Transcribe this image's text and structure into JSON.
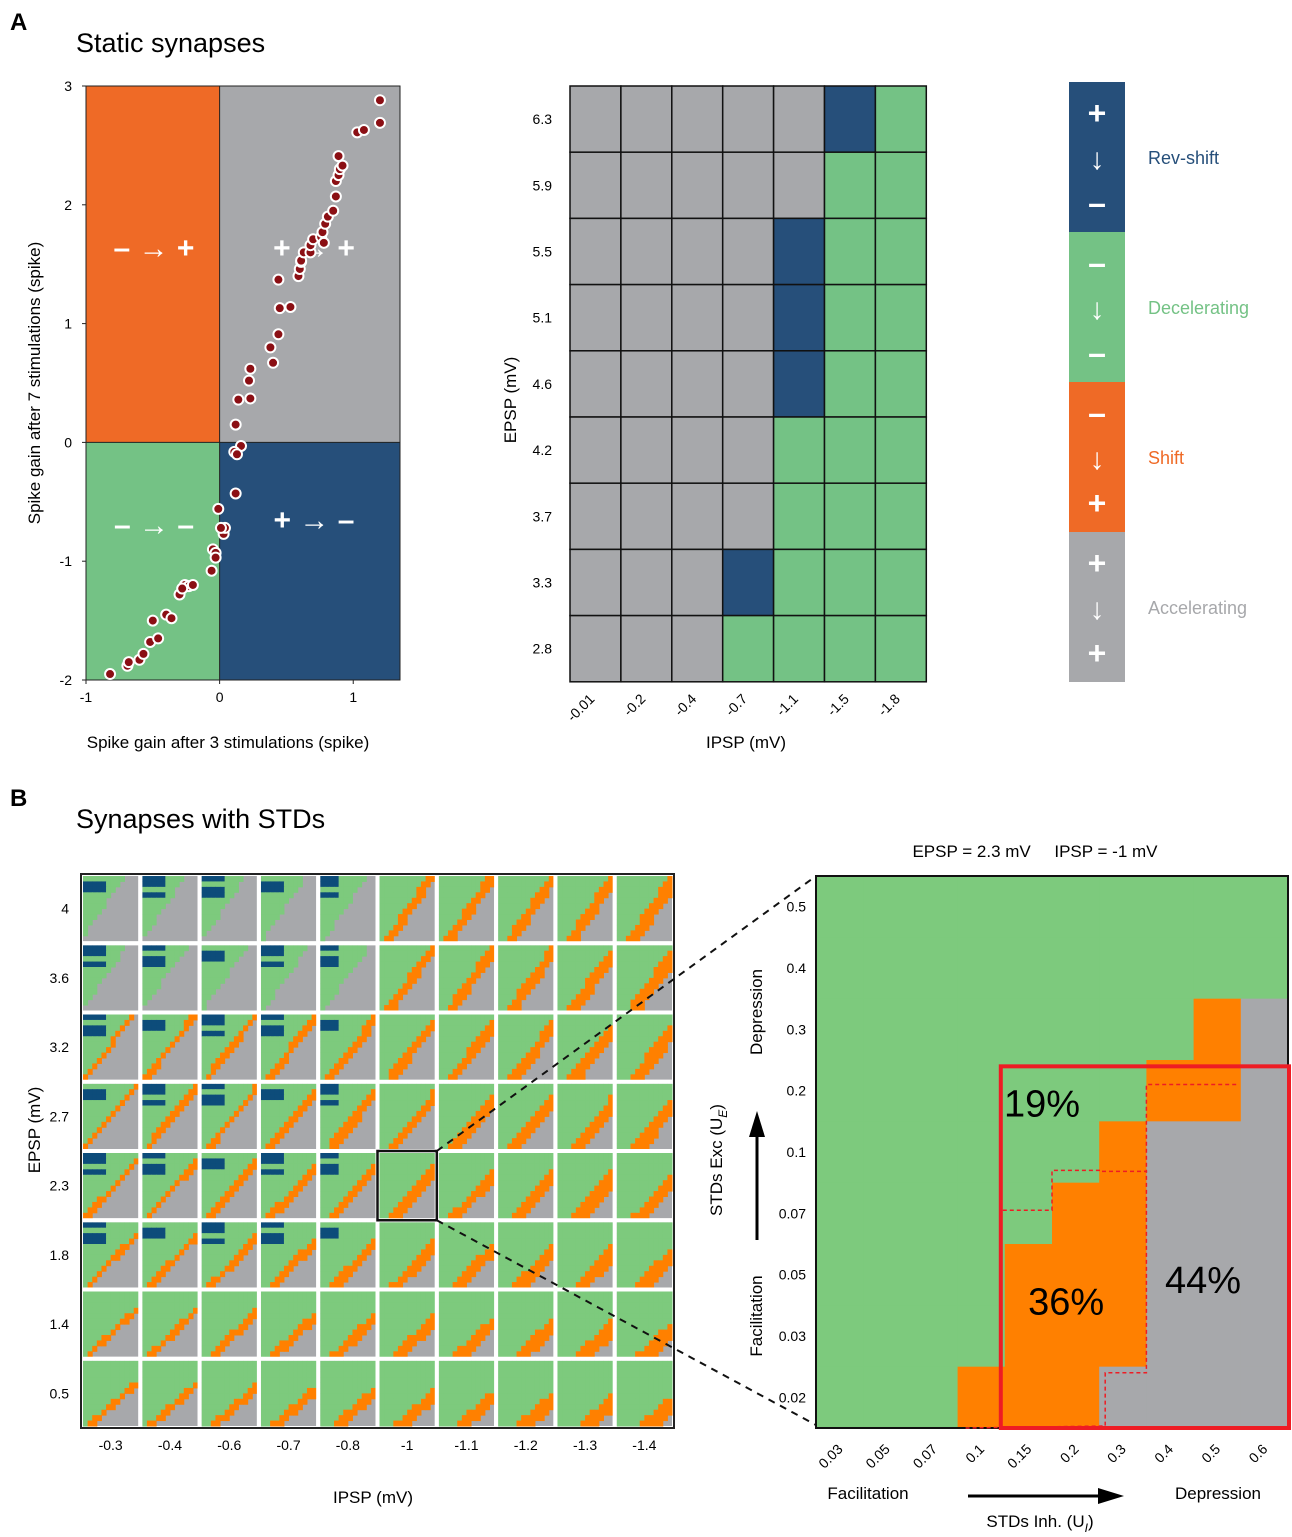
{
  "colors": {
    "orange_region": "#ef6a26",
    "gray": "#a7a8ab",
    "green": "#74c285",
    "blue": "#264f7a",
    "dot_fill": "#8b0f14",
    "highlight_red": "#ee1c24",
    "orange_std": "#ff8000",
    "green_std": "#7dca7d",
    "blue_std": "#0d4c7a"
  },
  "panel_a": {
    "letter": "A",
    "title": "Static synapses",
    "scatter": {
      "quadrant_labels": [
        {
          "from": "–",
          "to": "+",
          "color": "orange_region"
        },
        {
          "from": "+",
          "to": "+",
          "color": "gray"
        },
        {
          "from": "–",
          "to": "–",
          "color": "green"
        },
        {
          "from": "+",
          "to": "–",
          "color": "blue"
        }
      ],
      "arrow": "→"
    },
    "heatmap": {
      "xlabel": "IPSP (mV)",
      "ylabel": "EPSP (mV)"
    },
    "legend": [
      {
        "label": "Rev-shift",
        "color": "blue",
        "top": "+",
        "bottom": "–"
      },
      {
        "label": "Decelerating",
        "color": "green",
        "top": "–",
        "bottom": "–"
      },
      {
        "label": "Shift",
        "color": "orange_region",
        "top": "–",
        "bottom": "+"
      },
      {
        "label": "Accelerating",
        "color": "gray",
        "top": "+",
        "bottom": "+"
      }
    ],
    "legend_arrow": "↓"
  },
  "panel_b": {
    "letter": "B",
    "title": "Synapses with STDs",
    "grid": {
      "xlabel": "IPSP (mV)",
      "ylabel": "EPSP (mV)",
      "x_ticks": [
        "-0.3",
        "-0.4",
        "-0.6",
        "-0.7",
        "-0.8",
        "-1",
        "-1.1",
        "-1.2",
        "-1.3",
        "-1.4"
      ],
      "y_ticks": [
        "4",
        "3.6",
        "3.2",
        "2.7",
        "2.3",
        "1.8",
        "1.4",
        "0.5"
      ],
      "highlighted_cell": {
        "epsp": "2.3",
        "ipsp": "-1"
      }
    },
    "zoom": {
      "header": "EPSP = 2.3 mV     IPSP = -1 mV",
      "x_ticks": [
        "0.03",
        "0.05",
        "0.07",
        "0.1",
        "0.15",
        "0.2",
        "0.3",
        "0.4",
        "0.5",
        "0.6"
      ],
      "y_ticks": [
        "0.5",
        "0.4",
        "0.3",
        "0.2",
        "0.1",
        "0.07",
        "0.05",
        "0.03",
        "0.02"
      ],
      "x_axis_left": "Facilitation",
      "x_axis_right": "Depression",
      "x_axis_title": "STDs Inh. (U",
      "x_axis_sub": "I",
      "x_axis_close": ")",
      "y_axis_bottom": "Facilitation",
      "y_axis_top": "Depression",
      "y_axis_title": "STDs Exc (U",
      "y_axis_sub": "E",
      "y_axis_close": ")",
      "percent_labels": [
        "19%",
        "36%",
        "44%"
      ]
    }
  },
  "chart_data": [
    {
      "type": "scatter",
      "xlabel": "Spike gain after 3 stimulations (spike)",
      "ylabel": "Spike gain after 7 stimulations (spike)",
      "xlim": [
        -1,
        1.35
      ],
      "ylim": [
        -2,
        3
      ],
      "x_ticks": [
        "-1",
        "0",
        "1"
      ],
      "y_ticks": [
        "3",
        "2",
        "1",
        "0",
        "-1",
        "-2"
      ],
      "grid": false,
      "points": [
        [
          -0.82,
          -1.95
        ],
        [
          -0.69,
          -1.88
        ],
        [
          -0.68,
          -1.85
        ],
        [
          -0.6,
          -1.83
        ],
        [
          -0.57,
          -1.78
        ],
        [
          -0.52,
          -1.68
        ],
        [
          -0.46,
          -1.65
        ],
        [
          -0.5,
          -1.5
        ],
        [
          -0.4,
          -1.45
        ],
        [
          -0.36,
          -1.48
        ],
        [
          -0.3,
          -1.28
        ],
        [
          -0.26,
          -1.2
        ],
        [
          -0.23,
          -1.21
        ],
        [
          -0.2,
          -1.2
        ],
        [
          -0.28,
          -1.23
        ],
        [
          -0.06,
          -1.08
        ],
        [
          -0.05,
          -0.9
        ],
        [
          -0.03,
          -0.93
        ],
        [
          -0.03,
          -0.97
        ],
        [
          0.03,
          -0.77
        ],
        [
          0.04,
          -0.72
        ],
        [
          0.01,
          -0.72
        ],
        [
          -0.01,
          -0.56
        ],
        [
          0.12,
          -0.43
        ],
        [
          0.16,
          -0.03
        ],
        [
          0.11,
          -0.08
        ],
        [
          0.13,
          -0.1
        ],
        [
          0.12,
          0.15
        ],
        [
          0.14,
          0.36
        ],
        [
          0.23,
          0.37
        ],
        [
          0.22,
          0.52
        ],
        [
          0.23,
          0.62
        ],
        [
          0.4,
          0.67
        ],
        [
          0.38,
          0.8
        ],
        [
          0.44,
          0.91
        ],
        [
          0.45,
          1.13
        ],
        [
          0.53,
          1.14
        ],
        [
          0.44,
          1.37
        ],
        [
          0.59,
          1.4
        ],
        [
          0.6,
          1.46
        ],
        [
          0.61,
          1.52
        ],
        [
          0.61,
          1.53
        ],
        [
          0.63,
          1.6
        ],
        [
          0.68,
          1.6
        ],
        [
          0.68,
          1.66
        ],
        [
          0.7,
          1.71
        ],
        [
          0.76,
          1.73
        ],
        [
          0.77,
          1.77
        ],
        [
          0.78,
          1.68
        ],
        [
          0.79,
          1.84
        ],
        [
          0.81,
          1.9
        ],
        [
          0.85,
          1.95
        ],
        [
          0.87,
          2.07
        ],
        [
          0.87,
          2.2
        ],
        [
          0.89,
          2.25
        ],
        [
          0.9,
          2.3
        ],
        [
          0.92,
          2.33
        ],
        [
          0.89,
          2.41
        ],
        [
          1.03,
          2.61
        ],
        [
          1.08,
          2.63
        ],
        [
          1.2,
          2.69
        ],
        [
          1.2,
          2.88
        ]
      ]
    },
    {
      "type": "heatmap",
      "xlabel": "IPSP (mV)",
      "ylabel": "EPSP (mV)",
      "x": [
        "-0.01",
        "-0.2",
        "-0.4",
        "-0.7",
        "-1.1",
        "-1.5",
        "-1.8"
      ],
      "y": [
        "6.3",
        "5.9",
        "5.5",
        "5.1",
        "4.6",
        "4.2",
        "3.7",
        "3.3",
        "2.8"
      ],
      "categories": {
        "A": "Accelerating",
        "D": "Decelerating",
        "R": "Rev-shift",
        "S": "Shift"
      },
      "values": [
        [
          "A",
          "A",
          "A",
          "A",
          "A",
          "R",
          "D"
        ],
        [
          "A",
          "A",
          "A",
          "A",
          "A",
          "D",
          "D"
        ],
        [
          "A",
          "A",
          "A",
          "A",
          "R",
          "D",
          "D"
        ],
        [
          "A",
          "A",
          "A",
          "A",
          "R",
          "D",
          "D"
        ],
        [
          "A",
          "A",
          "A",
          "A",
          "R",
          "D",
          "D"
        ],
        [
          "A",
          "A",
          "A",
          "A",
          "D",
          "D",
          "D"
        ],
        [
          "A",
          "A",
          "A",
          "A",
          "D",
          "D",
          "D"
        ],
        [
          "A",
          "A",
          "A",
          "R",
          "D",
          "D",
          "D"
        ],
        [
          "A",
          "A",
          "A",
          "D",
          "D",
          "D",
          "D"
        ]
      ]
    },
    {
      "type": "heatmap",
      "title": "EPSP = 2.3 mV     IPSP = -1 mV",
      "x": [
        "0.03",
        "0.05",
        "0.07",
        "0.1",
        "0.15",
        "0.2",
        "0.3",
        "0.4",
        "0.5",
        "0.6"
      ],
      "y": [
        "0.5",
        "0.4",
        "0.3",
        "0.2",
        "0.1",
        "0.07",
        "0.05",
        "0.03",
        "0.02"
      ],
      "categories": {
        "D": "Decelerating",
        "S": "Shift",
        "A": "Accelerating"
      },
      "values": [
        [
          "D",
          "D",
          "D",
          "D",
          "D",
          "D",
          "D",
          "D",
          "D",
          "D"
        ],
        [
          "D",
          "D",
          "D",
          "D",
          "D",
          "D",
          "D",
          "D",
          "D",
          "D"
        ],
        [
          "D",
          "D",
          "D",
          "D",
          "D",
          "D",
          "D",
          "D",
          "S",
          "A"
        ],
        [
          "D",
          "D",
          "D",
          "D",
          "D",
          "D",
          "D",
          "S",
          "S",
          "A"
        ],
        [
          "D",
          "D",
          "D",
          "D",
          "D",
          "D",
          "S",
          "A",
          "A",
          "A"
        ],
        [
          "D",
          "D",
          "D",
          "D",
          "D",
          "S",
          "S",
          "A",
          "A",
          "A"
        ],
        [
          "D",
          "D",
          "D",
          "D",
          "S",
          "S",
          "S",
          "A",
          "A",
          "A"
        ],
        [
          "D",
          "D",
          "D",
          "D",
          "S",
          "S",
          "S",
          "A",
          "A",
          "A"
        ],
        [
          "D",
          "D",
          "D",
          "S",
          "S",
          "S",
          "A",
          "A",
          "A",
          "A"
        ]
      ],
      "annotations": [
        {
          "text": "19%",
          "category": "Decelerating"
        },
        {
          "text": "36%",
          "category": "Shift"
        },
        {
          "text": "44%",
          "category": "Accelerating"
        }
      ]
    }
  ]
}
